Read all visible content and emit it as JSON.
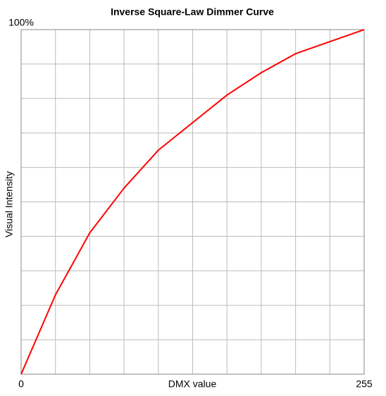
{
  "chart_data": {
    "type": "line",
    "title": "Inverse Square-Law Dimmer Curve",
    "x_label": "DMX value",
    "y_label": "Visual Intensity",
    "x": [
      0,
      25.5,
      51,
      76.5,
      102,
      127.5,
      153,
      178.5,
      204,
      229.5,
      255
    ],
    "series": [
      {
        "name": "Visual Intensity",
        "color": "#ff0000",
        "values": [
          0,
          23,
          41,
          54,
          65,
          73,
          81,
          87.5,
          93,
          96.5,
          100
        ]
      }
    ],
    "xlim": [
      0,
      255
    ],
    "ylim": [
      0,
      100
    ],
    "xticks": [
      0,
      255
    ],
    "yticks": [
      {
        "value": 100,
        "label": "100%"
      }
    ],
    "grid": true,
    "grid_divisions": 10
  }
}
